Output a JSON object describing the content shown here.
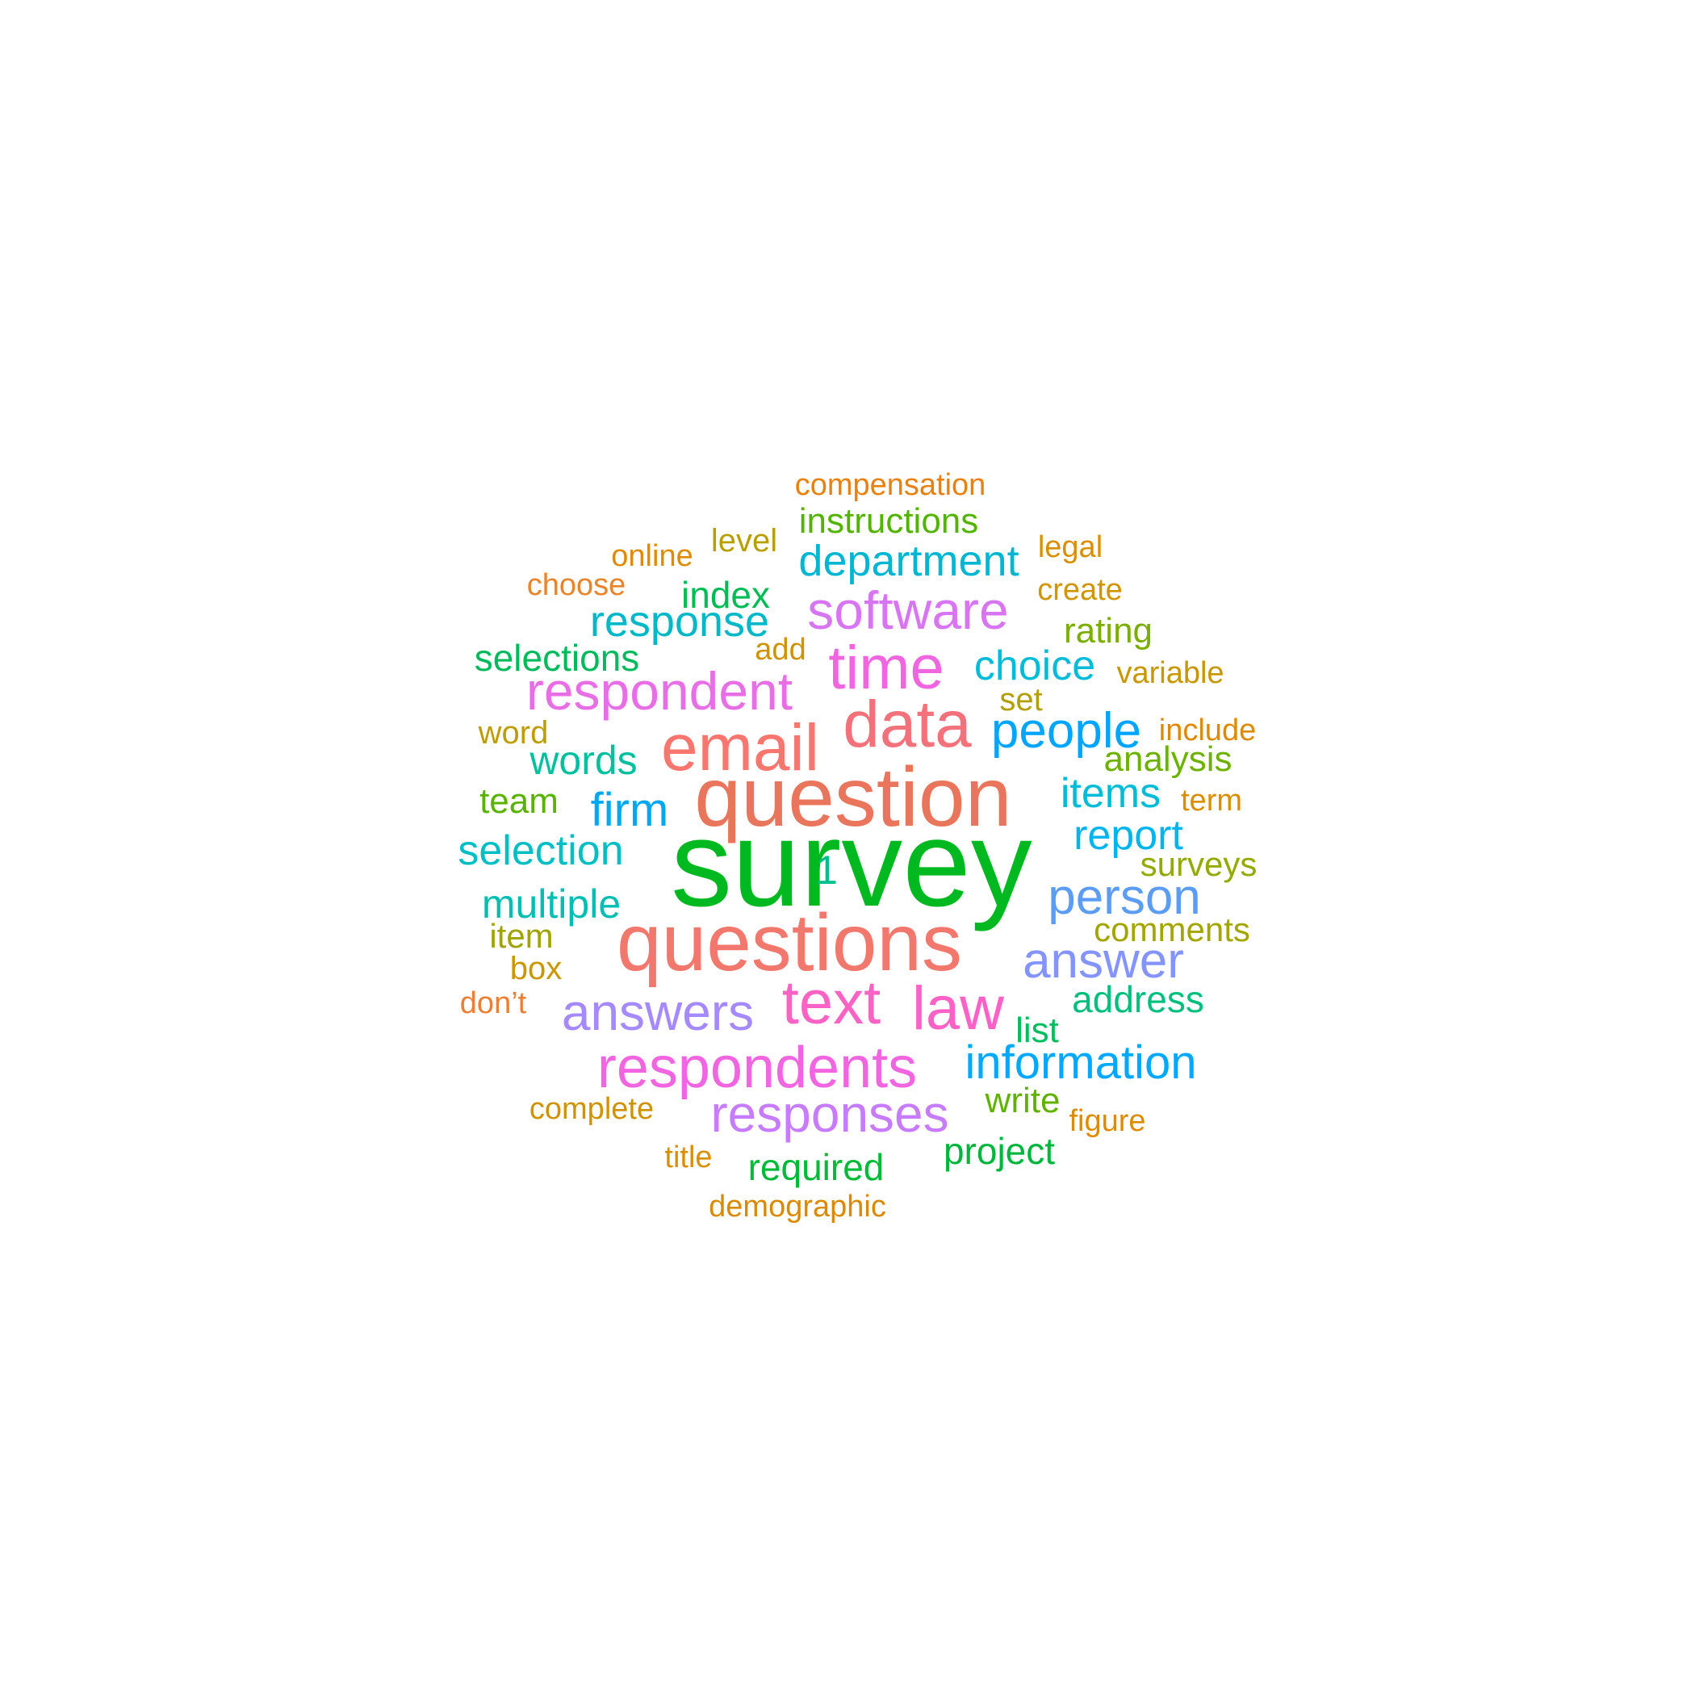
{
  "words": [
    {
      "text": "survey",
      "color": "#00b81f"
    },
    {
      "text": "question",
      "color": "#e9765c"
    },
    {
      "text": "questions",
      "color": "#f2776d"
    },
    {
      "text": "email",
      "color": "#f8766d"
    },
    {
      "text": "data",
      "color": "#f3717a"
    },
    {
      "text": "respondent",
      "color": "#e86ee6"
    },
    {
      "text": "time",
      "color": "#f066e0"
    },
    {
      "text": "respondents",
      "color": "#f265e0"
    },
    {
      "text": "software",
      "color": "#d875f2"
    },
    {
      "text": "text",
      "color": "#fa62c4"
    },
    {
      "text": "law",
      "color": "#fc61c6"
    },
    {
      "text": "responses",
      "color": "#c77cff"
    },
    {
      "text": "answers",
      "color": "#a58aff"
    },
    {
      "text": "answer",
      "color": "#8494ff"
    },
    {
      "text": "person",
      "color": "#5b9cf5"
    },
    {
      "text": "people",
      "color": "#00a5ff"
    },
    {
      "text": "information",
      "color": "#00a9ff"
    },
    {
      "text": "firm",
      "color": "#00a8f0"
    },
    {
      "text": "department",
      "color": "#00b6d0"
    },
    {
      "text": "response",
      "color": "#00b8c7"
    },
    {
      "text": "choice",
      "color": "#00bcd8"
    },
    {
      "text": "items",
      "color": "#00bcd6"
    },
    {
      "text": "report",
      "color": "#00b5ed"
    },
    {
      "text": "selection",
      "color": "#00bfc4"
    },
    {
      "text": "multiple",
      "color": "#00bfb2"
    },
    {
      "text": "words",
      "color": "#00c0a0"
    },
    {
      "text": "index",
      "color": "#00bc56"
    },
    {
      "text": "selections",
      "color": "#00ba5c"
    },
    {
      "text": "address",
      "color": "#00bf7d"
    },
    {
      "text": "list",
      "color": "#00bd5f"
    },
    {
      "text": "1",
      "color": "#00bf8c"
    },
    {
      "text": "required",
      "color": "#00ba38"
    },
    {
      "text": "project",
      "color": "#00b53d"
    },
    {
      "text": "instructions",
      "color": "#53b400"
    },
    {
      "text": "rating",
      "color": "#7cae00"
    },
    {
      "text": "analysis",
      "color": "#6db200"
    },
    {
      "text": "team",
      "color": "#5ab300"
    },
    {
      "text": "write",
      "color": "#61b200"
    },
    {
      "text": "surveys",
      "color": "#93aa00"
    },
    {
      "text": "comments",
      "color": "#a3a500"
    },
    {
      "text": "item",
      "color": "#a0a400"
    },
    {
      "text": "level",
      "color": "#b79f00"
    },
    {
      "text": "set",
      "color": "#b49f00"
    },
    {
      "text": "word",
      "color": "#bd9d00"
    },
    {
      "text": "box",
      "color": "#c99800"
    },
    {
      "text": "add",
      "color": "#ce9400"
    },
    {
      "text": "variable",
      "color": "#c89700"
    },
    {
      "text": "legal",
      "color": "#d89000"
    },
    {
      "text": "create",
      "color": "#d19500"
    },
    {
      "text": "term",
      "color": "#d89000"
    },
    {
      "text": "complete",
      "color": "#cf9300"
    },
    {
      "text": "title",
      "color": "#d89000"
    },
    {
      "text": "figure",
      "color": "#dc8c00"
    },
    {
      "text": "online",
      "color": "#df8b00"
    },
    {
      "text": "include",
      "color": "#dd8a00"
    },
    {
      "text": "demographic",
      "color": "#d98a00"
    },
    {
      "text": "compensation",
      "color": "#e8820e"
    },
    {
      "text": "choose",
      "color": "#e8842a"
    },
    {
      "text": "don’t",
      "color": "#ea7f35"
    }
  ]
}
